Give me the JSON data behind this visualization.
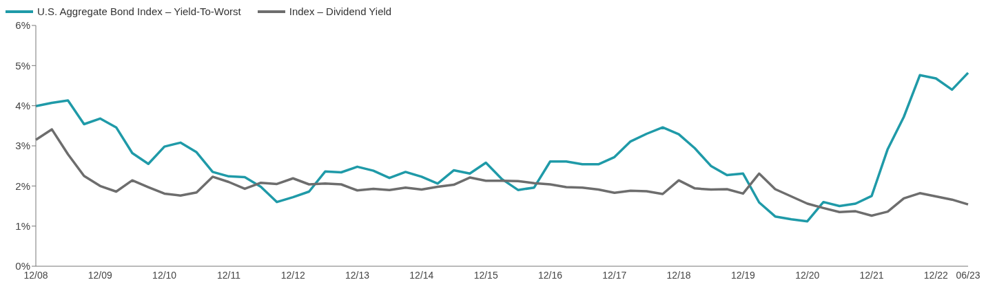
{
  "chart_data": {
    "type": "line",
    "categories": [
      "12/08",
      null,
      null,
      null,
      "12/09",
      null,
      null,
      null,
      "12/10",
      null,
      null,
      null,
      "12/11",
      null,
      null,
      null,
      "12/12",
      null,
      null,
      null,
      "12/13",
      null,
      null,
      null,
      "12/14",
      null,
      null,
      null,
      "12/15",
      null,
      null,
      null,
      "12/16",
      null,
      null,
      null,
      "12/17",
      null,
      null,
      null,
      "12/18",
      null,
      null,
      null,
      "12/19",
      null,
      null,
      null,
      "12/20",
      null,
      null,
      null,
      "12/21",
      null,
      null,
      null,
      "12/22",
      null,
      "06/23"
    ],
    "series": [
      {
        "name": "U.S. Aggregate Bond Index – Yield-To-Worst",
        "color": "#1f9aa8",
        "values": [
          3.99,
          4.07,
          4.13,
          3.54,
          3.68,
          3.46,
          2.82,
          2.55,
          2.98,
          3.08,
          2.84,
          2.35,
          2.24,
          2.22,
          1.98,
          1.6,
          1.72,
          1.86,
          2.36,
          2.34,
          2.48,
          2.38,
          2.2,
          2.35,
          2.23,
          2.06,
          2.39,
          2.31,
          2.58,
          2.17,
          1.9,
          1.96,
          2.61,
          2.61,
          2.54,
          2.54,
          2.72,
          3.11,
          3.3,
          3.46,
          3.29,
          2.94,
          2.5,
          2.27,
          2.31,
          1.59,
          1.24,
          1.17,
          1.12,
          1.6,
          1.5,
          1.56,
          1.75,
          2.92,
          3.72,
          4.76,
          4.68,
          4.4,
          4.82
        ]
      },
      {
        "name": "Index – Dividend Yield",
        "color": "#6d6d6d",
        "values": [
          3.15,
          3.41,
          2.79,
          2.25,
          2.0,
          1.86,
          2.14,
          1.97,
          1.81,
          1.76,
          1.84,
          2.23,
          2.1,
          1.93,
          2.08,
          2.05,
          2.19,
          2.04,
          2.06,
          2.04,
          1.89,
          1.93,
          1.9,
          1.96,
          1.91,
          1.98,
          2.03,
          2.21,
          2.13,
          2.13,
          2.12,
          2.07,
          2.04,
          1.97,
          1.96,
          1.91,
          1.83,
          1.88,
          1.87,
          1.8,
          2.14,
          1.94,
          1.91,
          1.92,
          1.81,
          2.31,
          1.92,
          1.74,
          1.56,
          1.45,
          1.35,
          1.37,
          1.26,
          1.36,
          1.69,
          1.82,
          1.74,
          1.66,
          1.54
        ]
      }
    ],
    "ylim": [
      0,
      6
    ],
    "yticks": [
      {
        "value": 0,
        "label": "0%"
      },
      {
        "value": 1,
        "label": "1%"
      },
      {
        "value": 2,
        "label": "2%"
      },
      {
        "value": 3,
        "label": "3%"
      },
      {
        "value": 4,
        "label": "4%"
      },
      {
        "value": 5,
        "label": "5%"
      },
      {
        "value": 6,
        "label": "6%"
      }
    ],
    "legend": "top left",
    "marker": "none",
    "line_style": "solid",
    "grid": false
  }
}
